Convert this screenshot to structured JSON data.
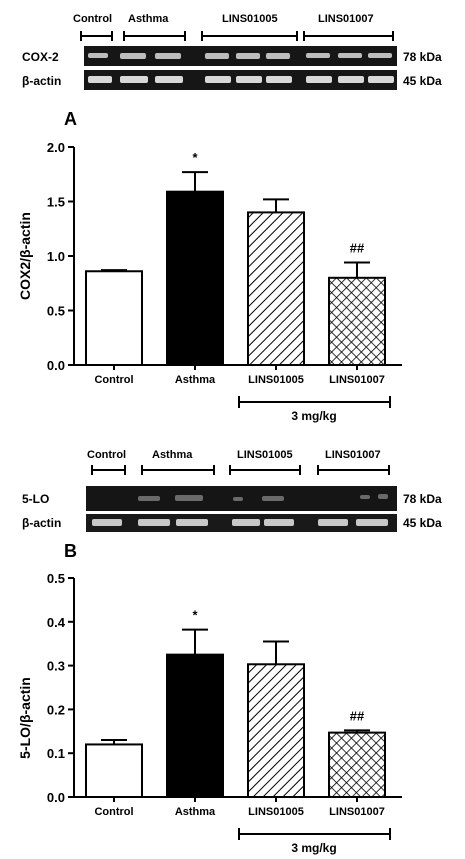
{
  "panels": [
    {
      "panel_letter": "A",
      "blot": {
        "group_labels": [
          "Control",
          "Asthma",
          "LINS01005",
          "LINS01007"
        ],
        "rows": [
          {
            "label": "COX-2",
            "size": "78 kDa"
          },
          {
            "label": "β-actin",
            "size": "45 kDa"
          }
        ]
      },
      "dose_label": "3 mg/kg"
    },
    {
      "panel_letter": "B",
      "blot": {
        "group_labels": [
          "Control",
          "Asthma",
          "LINS01005",
          "LINS01007"
        ],
        "rows": [
          {
            "label": "5-LO",
            "size": "78 kDa"
          },
          {
            "label": "β-actin",
            "size": "45 kDa"
          }
        ]
      },
      "dose_label": "3 mg/kg"
    }
  ],
  "chart_data": [
    {
      "type": "bar",
      "categories": [
        "Control",
        "Asthma",
        "LINS01005",
        "LINS01007"
      ],
      "values": [
        0.86,
        1.59,
        1.4,
        0.8
      ],
      "errors": [
        0.01,
        0.18,
        0.12,
        0.14
      ],
      "significance": [
        "",
        "*",
        "",
        "##"
      ],
      "bar_fills": [
        "white",
        "black",
        "diagonal-hatch",
        "crosshatch"
      ],
      "ylabel": "COX2/β-actin",
      "xlabel": "",
      "ylim": [
        0,
        2.0
      ],
      "yticks": [
        "0.0",
        "0.5",
        "1.0",
        "1.5",
        "2.0"
      ],
      "grid": false
    },
    {
      "type": "bar",
      "categories": [
        "Control",
        "Asthma",
        "LINS01005",
        "LINS01007"
      ],
      "values": [
        0.12,
        0.325,
        0.303,
        0.147
      ],
      "errors": [
        0.01,
        0.057,
        0.052,
        0.005
      ],
      "significance": [
        "",
        "*",
        "",
        "##"
      ],
      "bar_fills": [
        "white",
        "black",
        "diagonal-hatch",
        "crosshatch"
      ],
      "ylabel": "5-LO/β-actin",
      "xlabel": "",
      "ylim": [
        0,
        0.5
      ],
      "yticks": [
        "0.0",
        "0.1",
        "0.2",
        "0.3",
        "0.4",
        "0.5"
      ],
      "grid": false
    }
  ]
}
